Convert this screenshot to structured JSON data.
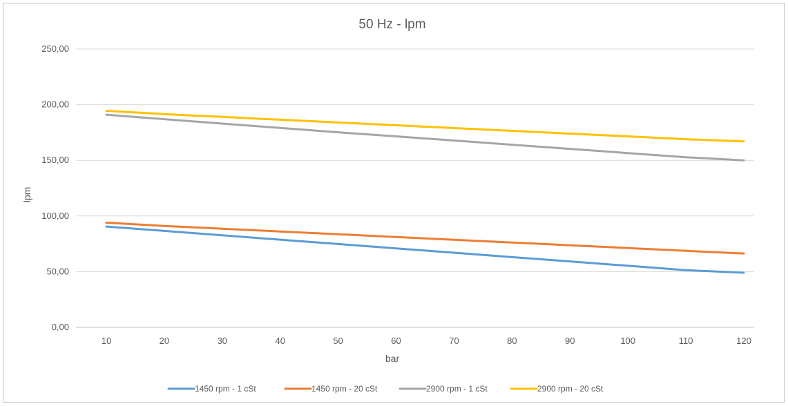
{
  "chart_data": {
    "type": "line",
    "title": "50 Hz - lpm",
    "xlabel": "bar",
    "ylabel": "lpm",
    "categories": [
      "10",
      "20",
      "30",
      "40",
      "50",
      "60",
      "70",
      "80",
      "90",
      "100",
      "110",
      "120"
    ],
    "x": [
      10,
      20,
      30,
      40,
      50,
      60,
      70,
      80,
      90,
      100,
      110,
      120
    ],
    "ylim": [
      0,
      250
    ],
    "yticks": [
      "0,00",
      "50,00",
      "100,00",
      "150,00",
      "200,00",
      "250,00"
    ],
    "ytick_values": [
      0,
      50,
      100,
      150,
      200,
      250
    ],
    "grid": true,
    "legend_position": "bottom",
    "series": [
      {
        "name": "1450 rpm - 1 cSt",
        "color": "#5b9bd5",
        "values": [
          90.5,
          86.6,
          82.6,
          78.7,
          74.8,
          70.9,
          67.0,
          63.0,
          59.2,
          55.3,
          51.3,
          49.0
        ]
      },
      {
        "name": "1450 rpm - 20 cSt",
        "color": "#ed7d31",
        "values": [
          94.0,
          91.0,
          88.6,
          86.1,
          83.6,
          81.1,
          78.6,
          76.2,
          73.7,
          71.2,
          68.7,
          66.3
        ]
      },
      {
        "name": "2900 rpm - 1 cSt",
        "color": "#a5a5a5",
        "values": [
          191.0,
          187.0,
          183.0,
          179.1,
          175.2,
          171.5,
          167.8,
          164.0,
          160.3,
          156.5,
          152.8,
          150.0
        ]
      },
      {
        "name": "2900 rpm - 20 cSt",
        "color": "#ffc000",
        "values": [
          194.5,
          191.5,
          189.0,
          186.5,
          184.0,
          181.5,
          179.0,
          176.5,
          174.0,
          171.5,
          169.0,
          167.0
        ]
      }
    ]
  }
}
